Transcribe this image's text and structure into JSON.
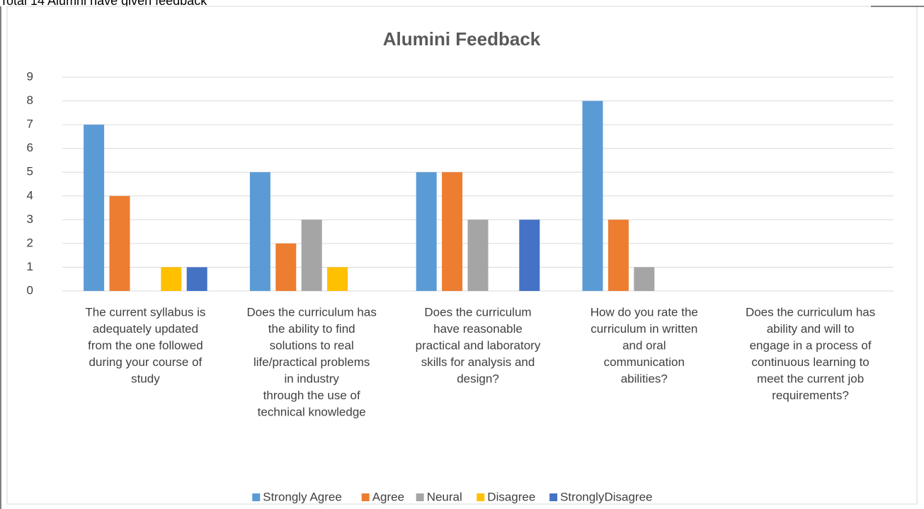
{
  "caption": "Total 14 Alumni have given feedback",
  "chart_data": {
    "type": "bar",
    "title": "Alumini Feedback",
    "categories": [
      [
        "The current syllabus is",
        "adequately updated",
        "from the one followed",
        "during your course of",
        "study"
      ],
      [
        "Does the curriculum has",
        "the ability to find",
        "solutions to real",
        "life/practical problems",
        "in industry",
        "through the use of",
        "technical knowledge"
      ],
      [
        "Does the curriculum",
        "have reasonable",
        "practical and laboratory",
        "skills for analysis and",
        "design?"
      ],
      [
        "How do you rate the",
        "curriculum in written",
        "and oral",
        "communication",
        "abilities?"
      ],
      [
        "Does the curriculum has",
        "ability and will to",
        "engage in a process of",
        "continuous learning to",
        "meet the current job",
        "requirements?"
      ]
    ],
    "series": [
      {
        "name": "Strongly Agree",
        "color": "#5b9bd5",
        "values": [
          7,
          5,
          5,
          8,
          0
        ]
      },
      {
        "name": "Agree",
        "color": "#ed7d31",
        "values": [
          4,
          2,
          5,
          3,
          0
        ]
      },
      {
        "name": "Neural",
        "color": "#a5a5a5",
        "values": [
          0,
          3,
          3,
          1,
          0
        ]
      },
      {
        "name": "Disagree",
        "color": "#ffc000",
        "values": [
          1,
          1,
          0,
          0,
          0
        ]
      },
      {
        "name": "StronglyDisagree",
        "color": "#4472c4",
        "values": [
          1,
          0,
          3,
          0,
          0
        ]
      }
    ],
    "ylim": [
      0,
      9
    ],
    "yticks": [
      0,
      1,
      2,
      3,
      4,
      5,
      6,
      7,
      8,
      9
    ],
    "grid": true,
    "legend": "bottom"
  }
}
